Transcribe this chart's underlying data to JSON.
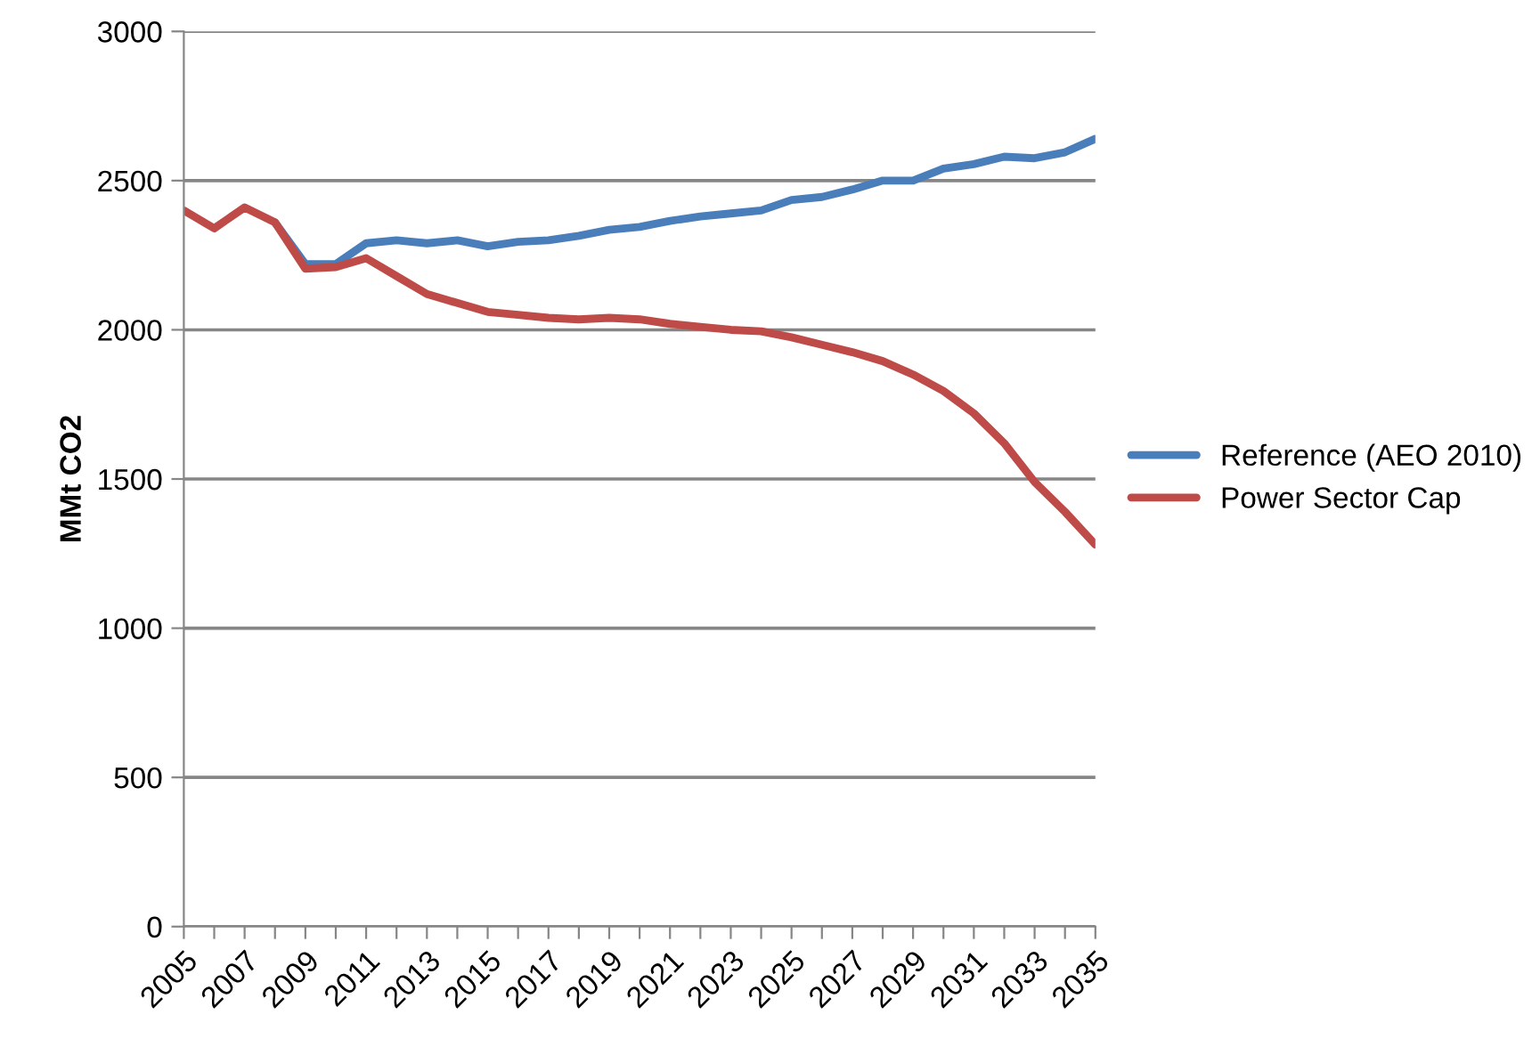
{
  "chart_data": {
    "type": "line",
    "ylabel": "MMt CO2",
    "x": [
      2005,
      2006,
      2007,
      2008,
      2009,
      2010,
      2011,
      2012,
      2013,
      2014,
      2015,
      2016,
      2017,
      2018,
      2019,
      2020,
      2021,
      2022,
      2023,
      2024,
      2025,
      2026,
      2027,
      2028,
      2029,
      2030,
      2031,
      2032,
      2033,
      2034,
      2035
    ],
    "series": [
      {
        "name": "Reference (AEO 2010)",
        "color": "#4a7ebb",
        "values": [
          null,
          null,
          null,
          2360,
          2220,
          2220,
          2290,
          2300,
          2290,
          2300,
          2280,
          2295,
          2300,
          2315,
          2335,
          2345,
          2365,
          2380,
          2390,
          2400,
          2435,
          2445,
          2470,
          2500,
          2500,
          2540,
          2555,
          2580,
          2575,
          2595,
          2640
        ]
      },
      {
        "name": "Power Sector Cap",
        "color": "#be4b48",
        "values": [
          2400,
          2340,
          2410,
          2360,
          2205,
          2210,
          2240,
          2180,
          2120,
          2090,
          2060,
          2050,
          2040,
          2035,
          2040,
          2035,
          2020,
          2010,
          2000,
          1995,
          1975,
          1950,
          1925,
          1895,
          1850,
          1795,
          1720,
          1620,
          1490,
          1390,
          1280
        ]
      }
    ],
    "xlim": [
      2005,
      2035
    ],
    "xticks": [
      2005,
      {
        "value": 2006,
        "label": null
      },
      2007,
      {
        "value": 2008,
        "label": null
      },
      2009,
      {
        "value": 2010,
        "label": null
      },
      2011,
      {
        "value": 2012,
        "label": null
      },
      2013,
      {
        "value": 2014,
        "label": null
      },
      2015,
      {
        "value": 2016,
        "label": null
      },
      2017,
      {
        "value": 2018,
        "label": null
      },
      2019,
      {
        "value": 2020,
        "label": null
      },
      2021,
      {
        "value": 2022,
        "label": null
      },
      2023,
      {
        "value": 2024,
        "label": null
      },
      2025,
      {
        "value": 2026,
        "label": null
      },
      2027,
      {
        "value": 2028,
        "label": null
      },
      2029,
      {
        "value": 2030,
        "label": null
      },
      2031,
      {
        "value": 2032,
        "label": null
      },
      2033,
      {
        "value": 2034,
        "label": null
      },
      2035
    ],
    "ylim": [
      0,
      3000
    ],
    "yticks": [
      0,
      500,
      1000,
      1500,
      2000,
      2500,
      3000
    ],
    "grid": "y",
    "legend": "right",
    "marker": "none",
    "line_style": "solid"
  }
}
